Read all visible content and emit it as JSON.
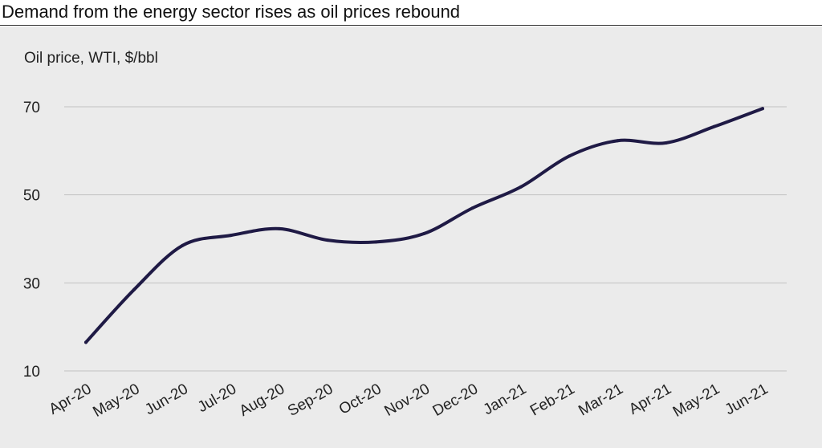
{
  "header": {
    "title": "Demand from the energy sector rises as oil prices rebound"
  },
  "chart_data": {
    "type": "line",
    "title": "Demand from the energy sector rises as oil prices rebound",
    "ylabel": "Oil price, WTI, $/bbl",
    "xlabel": "",
    "categories": [
      "Apr-20",
      "May-20",
      "Jun-20",
      "Jul-20",
      "Aug-20",
      "Sep-20",
      "Oct-20",
      "Nov-20",
      "Dec-20",
      "Jan-21",
      "Feb-21",
      "Mar-21",
      "Apr-21",
      "May-21",
      "Jun-21"
    ],
    "ylim": [
      10,
      70
    ],
    "yticks": [
      10,
      30,
      50,
      70
    ],
    "grid": true,
    "legend": "none",
    "series": [
      {
        "values": [
          16.5,
          28.5,
          38.5,
          40.8,
          42.3,
          39.7,
          39.3,
          41.2,
          47.0,
          51.8,
          58.8,
          62.3,
          61.8,
          65.5,
          69.6
        ],
        "color": "#1f1a45"
      }
    ]
  }
}
